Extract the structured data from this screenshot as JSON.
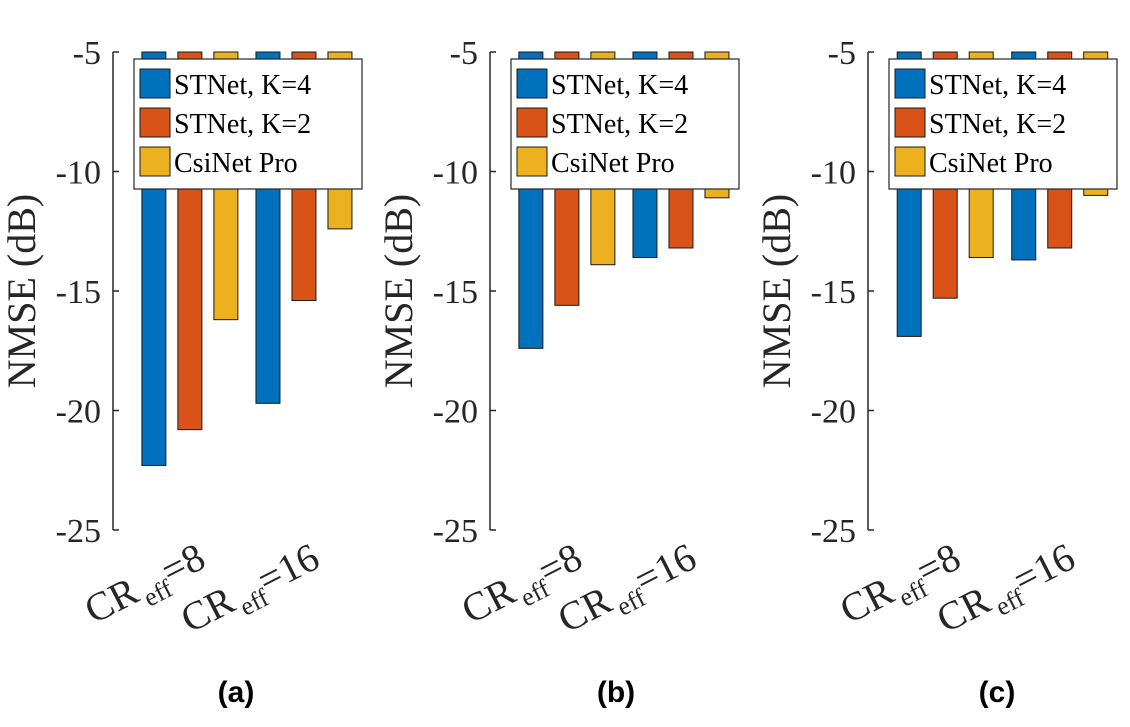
{
  "chart_data": [
    {
      "type": "bar",
      "panel_label": "(a)",
      "ylabel": "NMSE (dB)",
      "ylim": [
        -25,
        -5
      ],
      "yticks": [
        "-25",
        "-20",
        "-15",
        "-10",
        "-5"
      ],
      "categories": [
        {
          "base": "CR",
          "sub": "eff",
          "suffix": "=8"
        },
        {
          "base": "CR",
          "sub": "eff",
          "suffix": "=16"
        }
      ],
      "series": [
        {
          "name": "STNet, K=4",
          "color": "#0072BD",
          "values": [
            -22.3,
            -19.7
          ]
        },
        {
          "name": "STNet, K=2",
          "color": "#D95319",
          "values": [
            -20.8,
            -15.4
          ]
        },
        {
          "name": "CsiNet Pro",
          "color": "#EDB120",
          "values": [
            -16.2,
            -12.4
          ]
        }
      ],
      "legend": "top-right"
    },
    {
      "type": "bar",
      "panel_label": "(b)",
      "ylabel": "NMSE (dB)",
      "ylim": [
        -25,
        -5
      ],
      "yticks": [
        "-25",
        "-20",
        "-15",
        "-10",
        "-5"
      ],
      "categories": [
        {
          "base": "CR",
          "sub": "eff",
          "suffix": "=8"
        },
        {
          "base": "CR",
          "sub": "eff",
          "suffix": "=16"
        }
      ],
      "series": [
        {
          "name": "STNet, K=4",
          "color": "#0072BD",
          "values": [
            -17.4,
            -13.6
          ]
        },
        {
          "name": "STNet, K=2",
          "color": "#D95319",
          "values": [
            -15.6,
            -13.2
          ]
        },
        {
          "name": "CsiNet Pro",
          "color": "#EDB120",
          "values": [
            -13.9,
            -11.1
          ]
        }
      ],
      "legend": "top-right"
    },
    {
      "type": "bar",
      "panel_label": "(c)",
      "ylabel": "NMSE (dB)",
      "ylim": [
        -25,
        -5
      ],
      "yticks": [
        "-25",
        "-20",
        "-15",
        "-10",
        "-5"
      ],
      "categories": [
        {
          "base": "CR",
          "sub": "eff",
          "suffix": "=8"
        },
        {
          "base": "CR",
          "sub": "eff",
          "suffix": "=16"
        }
      ],
      "series": [
        {
          "name": "STNet, K=4",
          "color": "#0072BD",
          "values": [
            -16.9,
            -13.7
          ]
        },
        {
          "name": "STNet, K=2",
          "color": "#D95319",
          "values": [
            -15.3,
            -13.2
          ]
        },
        {
          "name": "CsiNet Pro",
          "color": "#EDB120",
          "values": [
            -13.6,
            -11.0
          ]
        }
      ],
      "legend": "top-right"
    }
  ]
}
